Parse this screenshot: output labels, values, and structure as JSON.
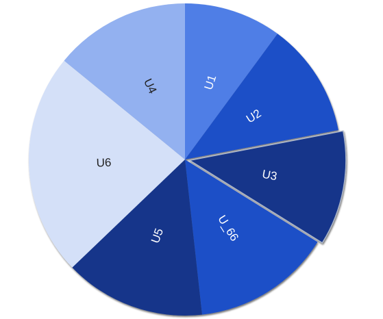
{
  "chart_data": {
    "type": "pie",
    "title": "",
    "slices": [
      {
        "label": "U1",
        "value": 10.1,
        "color": "#4f7ee6",
        "label_color": "#ffffff"
      },
      {
        "label": "U2",
        "value": 11.9,
        "color": "#1e4fc7",
        "label_color": "#ffffff"
      },
      {
        "label": "U3",
        "value": 11.9,
        "color": "#13358a",
        "label_color": "#ffffff",
        "exploded": true
      },
      {
        "label": "U_66",
        "value": 14.4,
        "color": "#1e4fc7",
        "label_color": "#ffffff"
      },
      {
        "label": "U5",
        "value": 14.6,
        "color": "#13358a",
        "label_color": "#ffffff"
      },
      {
        "label": "U6",
        "value": 23.1,
        "color": "#d4e0f8",
        "label_color": "#222222"
      },
      {
        "label": "U4",
        "value": 14.1,
        "color": "#93b1f0",
        "label_color": "#222222"
      }
    ],
    "start_angle_deg": -90,
    "direction": "clockwise",
    "legend": "none"
  }
}
